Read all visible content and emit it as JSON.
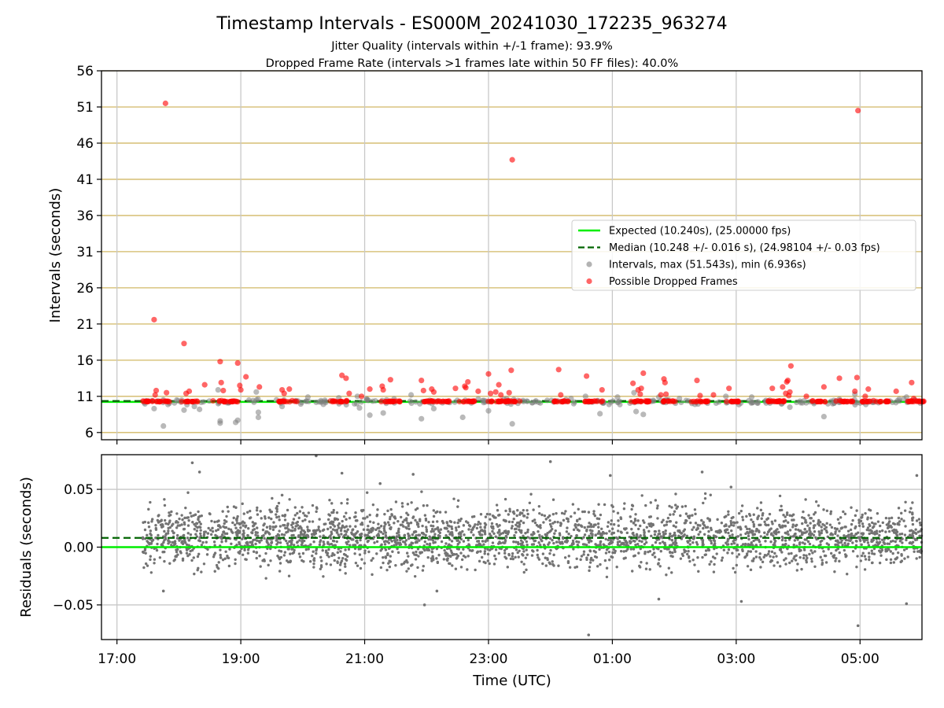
{
  "title": "Timestamp Intervals - ES000M_20241030_172235_963274",
  "subtitle_1": "Jitter Quality (intervals within +/-1 frame): 93.9%",
  "subtitle_2": "Dropped Frame Rate (intervals >1 frames late within 50 FF files): 40.0%",
  "chart_data": [
    {
      "type": "scatter",
      "panel": "top",
      "xlabel": "",
      "ylabel": "Intervals (seconds)",
      "x_ticks": [
        "17:00",
        "19:00",
        "21:00",
        "23:00",
        "01:00",
        "03:00",
        "05:00"
      ],
      "xlim": [
        "2024-10-30T16:45",
        "2024-10-31T06:00"
      ],
      "ylim": [
        5,
        56
      ],
      "y_ticks": [
        6,
        11,
        16,
        21,
        26,
        31,
        36,
        41,
        46,
        51,
        56
      ],
      "grid": "vertical lines at x ticks; horizontal lines at y ticks",
      "legend_position": "center-right",
      "legend": [
        {
          "label": "Expected (10.240s), (25.00000 fps)",
          "style": "solid line",
          "color": "#00ee00"
        },
        {
          "label": "Median (10.248 +/- 0.016 s), (24.98104 +/- 0.03 fps)",
          "style": "dashed line",
          "color": "#006400"
        },
        {
          "label": "Intervals, max (51.543s), min (6.936s)",
          "style": "marker",
          "color": "#808080"
        },
        {
          "label": "Possible Dropped Frames",
          "style": "marker",
          "color": "#ff0000"
        }
      ],
      "expected_line": 10.24,
      "median_line": 10.248,
      "series": [
        {
          "name": "Intervals, max (51.543s), min (6.936s)",
          "color": "#808080",
          "points": [
            [
              "2024-10-30T17:36",
              9.3
            ],
            [
              "2024-10-30T17:45",
              6.9
            ],
            [
              "2024-10-30T18:05",
              9.1
            ],
            [
              "2024-10-30T18:15",
              9.6
            ],
            [
              "2024-10-30T18:20",
              9.2
            ],
            [
              "2024-10-30T18:38",
              11.9
            ],
            [
              "2024-10-30T18:40",
              7.3
            ],
            [
              "2024-10-30T18:40",
              7.6
            ],
            [
              "2024-10-30T18:55",
              7.4
            ],
            [
              "2024-10-30T18:57",
              7.7
            ],
            [
              "2024-10-30T19:15",
              11.6
            ],
            [
              "2024-10-30T19:17",
              8.8
            ],
            [
              "2024-10-30T19:17",
              8.1
            ],
            [
              "2024-10-30T19:40",
              9.6
            ],
            [
              "2024-10-30T20:05",
              10.9
            ],
            [
              "2024-10-30T20:20",
              9.9
            ],
            [
              "2024-10-30T20:35",
              10.8
            ],
            [
              "2024-10-30T20:53",
              11.0
            ],
            [
              "2024-10-30T20:55",
              9.4
            ],
            [
              "2024-10-30T21:05",
              8.4
            ],
            [
              "2024-10-30T21:18",
              8.7
            ],
            [
              "2024-10-30T21:45",
              11.2
            ],
            [
              "2024-10-30T21:55",
              7.9
            ],
            [
              "2024-10-30T22:07",
              9.3
            ],
            [
              "2024-10-30T22:35",
              8.1
            ],
            [
              "2024-10-30T23:00",
              9.0
            ],
            [
              "2024-10-30T23:15",
              10.6
            ],
            [
              "2024-10-30T23:23",
              7.2
            ],
            [
              "2024-10-31T00:20",
              10.7
            ],
            [
              "2024-10-31T00:34",
              11.0
            ],
            [
              "2024-10-31T00:48",
              8.6
            ],
            [
              "2024-10-31T01:05",
              10.9
            ],
            [
              "2024-10-31T01:21",
              11.5
            ],
            [
              "2024-10-31T01:23",
              8.9
            ],
            [
              "2024-10-31T01:30",
              8.5
            ],
            [
              "2024-10-31T01:45",
              10.9
            ],
            [
              "2024-10-31T02:05",
              10.7
            ],
            [
              "2024-10-31T02:20",
              9.9
            ],
            [
              "2024-10-31T02:50",
              11.0
            ],
            [
              "2024-10-31T03:15",
              10.9
            ],
            [
              "2024-10-31T03:40",
              10.3
            ],
            [
              "2024-10-31T03:52",
              9.5
            ],
            [
              "2024-10-31T04:15",
              10.2
            ],
            [
              "2024-10-31T04:25",
              8.2
            ],
            [
              "2024-10-31T04:40",
              10.6
            ],
            [
              "2024-10-31T04:55",
              11.3
            ],
            [
              "2024-10-31T05:25",
              10.3
            ],
            [
              "2024-10-31T05:45",
              10.9
            ]
          ]
        },
        {
          "name": "Possible Dropped Frames",
          "color": "#ff0000",
          "points": [
            [
              "2024-10-30T17:36",
              21.6
            ],
            [
              "2024-10-30T17:37",
              11.2
            ],
            [
              "2024-10-30T17:38",
              11.8
            ],
            [
              "2024-10-30T17:47",
              51.5
            ],
            [
              "2024-10-30T17:48",
              11.5
            ],
            [
              "2024-10-30T18:05",
              18.3
            ],
            [
              "2024-10-30T18:07",
              11.4
            ],
            [
              "2024-10-30T18:10",
              11.7
            ],
            [
              "2024-10-30T18:25",
              12.6
            ],
            [
              "2024-10-30T18:40",
              15.8
            ],
            [
              "2024-10-30T18:41",
              12.9
            ],
            [
              "2024-10-30T18:43",
              11.8
            ],
            [
              "2024-10-30T18:57",
              15.6
            ],
            [
              "2024-10-30T18:59",
              12.5
            ],
            [
              "2024-10-30T19:00",
              11.9
            ],
            [
              "2024-10-30T19:05",
              13.7
            ],
            [
              "2024-10-30T19:18",
              12.3
            ],
            [
              "2024-10-30T19:40",
              11.9
            ],
            [
              "2024-10-30T19:42",
              11.4
            ],
            [
              "2024-10-30T19:47",
              12.0
            ],
            [
              "2024-10-30T20:38",
              13.9
            ],
            [
              "2024-10-30T20:42",
              13.5
            ],
            [
              "2024-10-30T20:45",
              11.4
            ],
            [
              "2024-10-30T20:57",
              11.0
            ],
            [
              "2024-10-30T21:05",
              12.0
            ],
            [
              "2024-10-30T21:17",
              12.4
            ],
            [
              "2024-10-30T21:18",
              11.9
            ],
            [
              "2024-10-30T21:25",
              13.3
            ],
            [
              "2024-10-30T21:55",
              13.2
            ],
            [
              "2024-10-30T21:57",
              11.8
            ],
            [
              "2024-10-30T22:05",
              12.0
            ],
            [
              "2024-10-30T22:07",
              11.6
            ],
            [
              "2024-10-30T22:28",
              12.1
            ],
            [
              "2024-10-30T22:37",
              12.4
            ],
            [
              "2024-10-30T22:38",
              12.2
            ],
            [
              "2024-10-30T22:40",
              13.0
            ],
            [
              "2024-10-30T22:50",
              11.7
            ],
            [
              "2024-10-30T23:00",
              14.1
            ],
            [
              "2024-10-30T23:02",
              11.4
            ],
            [
              "2024-10-30T23:07",
              11.6
            ],
            [
              "2024-10-30T23:10",
              12.6
            ],
            [
              "2024-10-30T23:12",
              11.2
            ],
            [
              "2024-10-30T23:20",
              11.5
            ],
            [
              "2024-10-30T23:22",
              14.6
            ],
            [
              "2024-10-30T23:23",
              43.7
            ],
            [
              "2024-10-31T00:08",
              14.7
            ],
            [
              "2024-10-31T00:10",
              11.2
            ],
            [
              "2024-10-31T00:35",
              13.8
            ],
            [
              "2024-10-31T00:50",
              11.9
            ],
            [
              "2024-10-31T01:20",
              12.8
            ],
            [
              "2024-10-31T01:25",
              11.9
            ],
            [
              "2024-10-31T01:27",
              11.3
            ],
            [
              "2024-10-31T01:28",
              12.1
            ],
            [
              "2024-10-31T01:30",
              14.2
            ],
            [
              "2024-10-31T01:47",
              11.2
            ],
            [
              "2024-10-31T01:50",
              13.4
            ],
            [
              "2024-10-31T01:51",
              12.9
            ],
            [
              "2024-10-31T01:52",
              11.3
            ],
            [
              "2024-10-31T02:22",
              13.2
            ],
            [
              "2024-10-31T02:25",
              11.1
            ],
            [
              "2024-10-31T02:38",
              11.2
            ],
            [
              "2024-10-31T02:53",
              12.1
            ],
            [
              "2024-10-31T03:35",
              12.1
            ],
            [
              "2024-10-31T03:45",
              12.3
            ],
            [
              "2024-10-31T03:48",
              11.4
            ],
            [
              "2024-10-31T03:49",
              13.0
            ],
            [
              "2024-10-31T03:50",
              13.2
            ],
            [
              "2024-10-31T03:51",
              11.1
            ],
            [
              "2024-10-31T03:52",
              11.6
            ],
            [
              "2024-10-31T03:53",
              15.2
            ],
            [
              "2024-10-31T04:08",
              11.0
            ],
            [
              "2024-10-31T04:25",
              12.3
            ],
            [
              "2024-10-31T04:40",
              13.5
            ],
            [
              "2024-10-31T04:55",
              11.7
            ],
            [
              "2024-10-31T04:57",
              13.6
            ],
            [
              "2024-10-31T04:58",
              50.5
            ],
            [
              "2024-10-31T05:05",
              11.0
            ],
            [
              "2024-10-31T05:08",
              12.0
            ],
            [
              "2024-10-31T05:35",
              11.7
            ],
            [
              "2024-10-31T05:50",
              12.9
            ],
            [
              "2024-10-31T05:52",
              10.7
            ]
          ]
        }
      ]
    },
    {
      "type": "scatter",
      "panel": "bottom",
      "xlabel": "Time (UTC)",
      "ylabel": "Residuals (seconds)",
      "x_ticks": [
        "17:00",
        "19:00",
        "21:00",
        "23:00",
        "01:00",
        "03:00",
        "05:00"
      ],
      "xlim": [
        "2024-10-30T16:45",
        "2024-10-31T06:00"
      ],
      "ylim": [
        -0.08,
        0.08
      ],
      "y_ticks": [
        -0.05,
        0.0,
        0.05
      ],
      "y_tick_labels": [
        "−0.05",
        "0.00",
        "0.05"
      ],
      "grid": "vertical lines at x ticks; horizontal lines at y ticks",
      "expected_line": 0.0,
      "median_line": 0.008,
      "residual_spread": "dense grey points from 17:25 to 06:00, mostly between -0.02 and 0.04, extremes about -0.076 and +0.079",
      "series": [
        {
          "name": "",
          "color": "#737373",
          "points": [
            [
              "2024-10-30T18:13",
              0.073
            ],
            [
              "2024-10-30T18:20",
              0.065
            ],
            [
              "2024-10-30T20:13",
              0.079
            ],
            [
              "2024-10-30T20:38",
              0.064
            ],
            [
              "2024-10-30T21:15",
              0.055
            ],
            [
              "2024-10-30T21:47",
              0.063
            ],
            [
              "2024-10-30T21:58",
              -0.05
            ],
            [
              "2024-10-31T00:00",
              0.074
            ],
            [
              "2024-10-31T00:37",
              -0.076
            ],
            [
              "2024-10-31T00:58",
              0.062
            ],
            [
              "2024-10-31T02:27",
              0.065
            ],
            [
              "2024-10-31T04:58",
              -0.068
            ],
            [
              "2024-10-31T05:45",
              -0.049
            ],
            [
              "2024-10-31T05:55",
              0.062
            ],
            [
              "2024-10-30T17:45",
              -0.038
            ],
            [
              "2024-10-30T22:10",
              -0.038
            ],
            [
              "2024-10-31T01:45",
              -0.045
            ],
            [
              "2024-10-31T03:05",
              -0.047
            ],
            [
              "2024-10-30T19:40",
              0.045
            ],
            [
              "2024-10-31T02:55",
              0.052
            ]
          ]
        }
      ]
    }
  ]
}
